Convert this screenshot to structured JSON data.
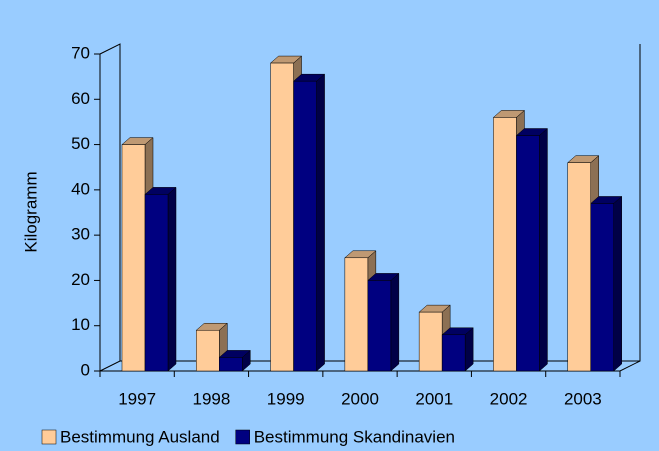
{
  "chart_data": {
    "type": "bar3d",
    "y_label": "Kilogramm",
    "categories": [
      "1997",
      "1998",
      "1999",
      "2000",
      "2001",
      "2002",
      "2003"
    ],
    "series": [
      {
        "name": "Bestimmung Ausland",
        "color": "#ffcc99",
        "values": [
          50,
          9,
          68,
          25,
          13,
          56,
          46
        ]
      },
      {
        "name": "Bestimmung Skandinavien",
        "color": "#000080",
        "values": [
          39,
          3,
          64,
          20,
          8,
          52,
          37
        ]
      }
    ],
    "ylim": [
      0,
      70
    ],
    "yticks": [
      0,
      10,
      20,
      30,
      40,
      50,
      60,
      70
    ],
    "grid": false
  }
}
